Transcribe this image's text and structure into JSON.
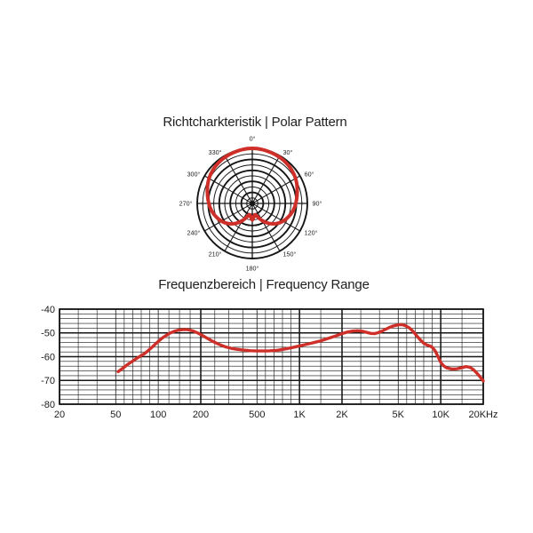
{
  "page": {
    "background": "#ffffff"
  },
  "chart_data": [
    {
      "type": "polar",
      "title": "Richtcharkteristik  |  Polar Pattern",
      "angle_labels": [
        "0°",
        "30°",
        "60°",
        "90°",
        "120°",
        "150°",
        "180°",
        "210°",
        "240°",
        "270°",
        "300°",
        "330°"
      ],
      "angle_step_deg": 30,
      "rings": 10,
      "mirror_symmetric": true,
      "colors": {
        "curve": "#ce2f28",
        "grid": "#161616"
      },
      "series": [
        {
          "name": "polar-pattern",
          "points_deg_r": [
            [
              0,
              1.0
            ],
            [
              5,
              1.0
            ],
            [
              10,
              0.995
            ],
            [
              15,
              0.99
            ],
            [
              20,
              0.985
            ],
            [
              25,
              0.98
            ],
            [
              30,
              0.975
            ],
            [
              35,
              0.968
            ],
            [
              40,
              0.96
            ],
            [
              45,
              0.95
            ],
            [
              50,
              0.938
            ],
            [
              55,
              0.924
            ],
            [
              60,
              0.908
            ],
            [
              65,
              0.888
            ],
            [
              70,
              0.866
            ],
            [
              75,
              0.845
            ],
            [
              80,
              0.825
            ],
            [
              85,
              0.807
            ],
            [
              90,
              0.79
            ],
            [
              95,
              0.772
            ],
            [
              100,
              0.752
            ],
            [
              105,
              0.728
            ],
            [
              110,
              0.702
            ],
            [
              115,
              0.675
            ],
            [
              120,
              0.645
            ],
            [
              125,
              0.61
            ],
            [
              130,
              0.57
            ],
            [
              135,
              0.525
            ],
            [
              140,
              0.475
            ],
            [
              145,
              0.42
            ],
            [
              150,
              0.36
            ],
            [
              155,
              0.3
            ],
            [
              158,
              0.262
            ],
            [
              162,
              0.225
            ],
            [
              166,
              0.21
            ],
            [
              170,
              0.218
            ],
            [
              174,
              0.252
            ],
            [
              177,
              0.28
            ],
            [
              180,
              0.3
            ]
          ]
        }
      ]
    },
    {
      "type": "line",
      "title": "Frequenzbereich  |  Frequency Range",
      "x_scale": "log",
      "xlim_hz": [
        20,
        20000
      ],
      "ylim_db": [
        -80,
        -40
      ],
      "y_major_step": 10,
      "y_minor_step": 2,
      "y_tick_labels": [
        "-40",
        "-50",
        "-60",
        "-70",
        "-80"
      ],
      "x_ticks": [
        {
          "f": 20,
          "label": "20"
        },
        {
          "f": 50,
          "label": "50"
        },
        {
          "f": 100,
          "label": "100"
        },
        {
          "f": 200,
          "label": "200"
        },
        {
          "f": 500,
          "label": "500"
        },
        {
          "f": 1000,
          "label": "1K"
        },
        {
          "f": 2000,
          "label": "2K"
        },
        {
          "f": 5000,
          "label": "5K"
        },
        {
          "f": 10000,
          "label": "10K"
        },
        {
          "f": 20000,
          "label": "20KHz"
        }
      ],
      "x_thick_gridlines_hz": [
        200,
        1000,
        2000,
        10000
      ],
      "x_minor_counts_per_segment": [
        2,
        4,
        3,
        3,
        4,
        1,
        2,
        4,
        1
      ],
      "grid": true,
      "legend": "none",
      "colors": {
        "curve": "#ce2f28",
        "grid": "#161616"
      },
      "series": [
        {
          "name": "frequency-response",
          "points_hz_db": [
            [
              52,
              -66.3
            ],
            [
              56,
              -64.9
            ],
            [
              60,
              -63.5
            ],
            [
              65,
              -62.1
            ],
            [
              70,
              -60.8
            ],
            [
              75,
              -59.7
            ],
            [
              80,
              -58.7
            ],
            [
              85,
              -57.4
            ],
            [
              90,
              -56.1
            ],
            [
              95,
              -54.8
            ],
            [
              100,
              -53.6
            ],
            [
              105,
              -52.5
            ],
            [
              110,
              -51.6
            ],
            [
              115,
              -50.9
            ],
            [
              120,
              -50.2
            ],
            [
              130,
              -49.3
            ],
            [
              140,
              -48.8
            ],
            [
              150,
              -48.6
            ],
            [
              160,
              -48.6
            ],
            [
              170,
              -48.9
            ],
            [
              180,
              -49.4
            ],
            [
              190,
              -50
            ],
            [
              200,
              -50.7
            ],
            [
              220,
              -52.1
            ],
            [
              240,
              -53.4
            ],
            [
              260,
              -54.4
            ],
            [
              280,
              -55.2
            ],
            [
              300,
              -55.9
            ],
            [
              330,
              -56.5
            ],
            [
              360,
              -56.9
            ],
            [
              400,
              -57.2
            ],
            [
              450,
              -57.5
            ],
            [
              500,
              -57.6
            ],
            [
              600,
              -57.6
            ],
            [
              700,
              -57.3
            ],
            [
              800,
              -56.7
            ],
            [
              900,
              -56.1
            ],
            [
              1000,
              -55.5
            ],
            [
              1100,
              -54.9
            ],
            [
              1200,
              -54.4
            ],
            [
              1400,
              -53.4
            ],
            [
              1600,
              -52.3
            ],
            [
              1800,
              -51.3
            ],
            [
              2000,
              -50.3
            ],
            [
              2200,
              -49.6
            ],
            [
              2400,
              -49.2
            ],
            [
              2600,
              -49.1
            ],
            [
              2800,
              -49.3
            ],
            [
              3000,
              -49.8
            ],
            [
              3200,
              -50.2
            ],
            [
              3400,
              -50.3
            ],
            [
              3600,
              -49.9
            ],
            [
              3800,
              -49.4
            ],
            [
              4000,
              -48.7
            ],
            [
              4300,
              -47.8
            ],
            [
              4600,
              -47.1
            ],
            [
              5000,
              -46.6
            ],
            [
              5300,
              -46.5
            ],
            [
              5600,
              -46.9
            ],
            [
              6000,
              -47.9
            ],
            [
              6400,
              -49.5
            ],
            [
              6800,
              -51.4
            ],
            [
              7200,
              -53.1
            ],
            [
              7600,
              -54.4
            ],
            [
              8000,
              -55.1
            ],
            [
              8400,
              -55.5
            ],
            [
              8800,
              -56.3
            ],
            [
              9200,
              -57.9
            ],
            [
              9600,
              -60.2
            ],
            [
              10000,
              -62.4
            ],
            [
              10500,
              -63.9
            ],
            [
              11000,
              -64.7
            ],
            [
              12000,
              -65.2
            ],
            [
              13000,
              -65.1
            ],
            [
              14000,
              -64.7
            ],
            [
              15000,
              -64.2
            ],
            [
              16000,
              -64.4
            ],
            [
              17000,
              -65.4
            ],
            [
              18000,
              -66.9
            ],
            [
              19000,
              -68.5
            ],
            [
              20000,
              -70.2
            ]
          ]
        }
      ]
    }
  ]
}
